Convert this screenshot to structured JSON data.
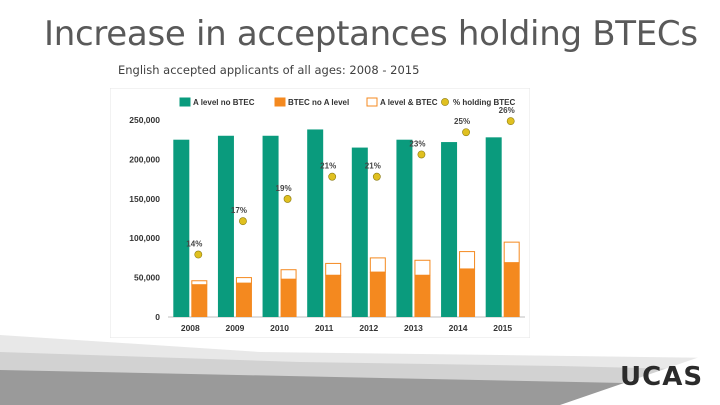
{
  "slide": {
    "title": "Increase in acceptances holding BTECs",
    "subtitle": "English accepted applicants of all ages: 2008 - 2015",
    "logo_text": "UCAS"
  },
  "chart_data": {
    "type": "bar",
    "categories": [
      "2008",
      "2009",
      "2010",
      "2011",
      "2012",
      "2013",
      "2014",
      "2015"
    ],
    "series": [
      {
        "name": "A level no BTEC",
        "color": "#0a9b7d",
        "values": [
          225000,
          230000,
          230000,
          238000,
          215000,
          225000,
          222000,
          228000
        ]
      },
      {
        "name": "BTEC no A level",
        "color": "#f4891f",
        "values": [
          41000,
          43000,
          48000,
          53000,
          57000,
          53000,
          61000,
          69000
        ],
        "stack": "btec"
      },
      {
        "name": "A level & BTEC",
        "color": "#ffffff",
        "values": [
          5000,
          7000,
          12000,
          15000,
          18000,
          19000,
          22000,
          26000
        ],
        "stack": "btec"
      },
      {
        "name": "% holding BTEC",
        "color": "#e0c020",
        "marker": "circle",
        "values": [
          14,
          17,
          19,
          21,
          21,
          23,
          25,
          26
        ],
        "labels": [
          "14%",
          "17%",
          "19%",
          "21%",
          "21%",
          "23%",
          "25%",
          "26%"
        ]
      }
    ],
    "yticks": [
      "0",
      "50,000",
      "100,000",
      "150,000",
      "200,000",
      "250,000"
    ],
    "ylim": [
      0,
      250000
    ],
    "legend_position": "top",
    "grid": false
  }
}
